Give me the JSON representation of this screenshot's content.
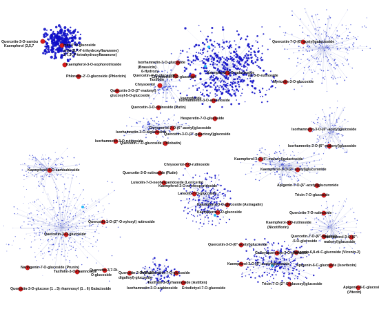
{
  "colors": {
    "background": "#ffffff",
    "edge": "#9fa8da",
    "node": "#1f2fd0",
    "node_dense": "#1010c8",
    "highlight": "#d81b1b",
    "highlight_stroke": "#8b0000",
    "accent": "#29b6f6",
    "label": "#111111"
  },
  "labels": [
    {
      "text": "Quercetin-3-O-sambu"
    },
    {
      "text": "Kaempferol (3,5,7"
    },
    {
      "text": "min-4'-O-glucoside"
    },
    {
      "text": "onin (8,7,4'-trihydroxyflavanone)"
    },
    {
      "text": "3,7,3',4'-tetrahydroxyflavanone)"
    },
    {
      "text": "Kaempferol-3-O-sophorotrioside"
    },
    {
      "text": "Phloretin-2'-O-glucoside (Phlorizin)"
    },
    {
      "text": "Quercetin-3-O-(2''-malonyl)"
    },
    {
      "text": "glucosyl-5-O-glucoside"
    },
    {
      "text": "Chrysoeriol"
    },
    {
      "text": "Quercetin-3-O-rutinoside (Rutin)"
    },
    {
      "text": "Isorhamnetin-3-O-glucoside"
    },
    {
      "text": "(Brassicin)"
    },
    {
      "text": "6-Hydroxy"
    },
    {
      "text": "Quercetin-4'-O-glucoside"
    },
    {
      "text": "Taxifolin"
    },
    {
      "text": "Quercetin-7-O-(6''-acetyl)galactoside"
    },
    {
      "text": "Myricetin-3-O-glucoside"
    },
    {
      "text": "Chrysoeriol-7-O-glucoside"
    },
    {
      "text": "Kaempferol-3-O-galactoside"
    },
    {
      "text": "nn-3-O-rutinoside"
    },
    {
      "text": "Isorhamnetin-3-O-arabinoside"
    },
    {
      "text": "kaempferide"
    },
    {
      "text": "Hesperetin-7-O-glucoside"
    },
    {
      "text": "Isorhamnetin-3-O-diglucoside"
    },
    {
      "text": "Chrysoeriol-7-O-(6''-acetyl)glucoside"
    },
    {
      "text": "Isorhamnetin-3-O-rutinoside"
    },
    {
      "text": "Quercetin-7-O-glucoside (Trilobatin)"
    },
    {
      "text": "Isorhamnetin-3-O-(6''-acetyl)glucoside"
    },
    {
      "text": "Isorhamnetin-3-O-(6''-malonyl)glucoside"
    },
    {
      "text": "Kaempferol-3-O-(6''-malonyl)galactoside"
    },
    {
      "text": "Kaempferol-3-O-(2''-acetyl)glucuronide"
    },
    {
      "text": "Quercetin-3-O-(2''-galactosyl)glucoside"
    },
    {
      "text": "Kaempferol-3-O-sambubioside"
    },
    {
      "text": "Chrysoeriol-7-O-rutinoside"
    },
    {
      "text": "Quercetin-3-O-rutinoside (Rutin)"
    },
    {
      "text": "Luteolin-7-O-neohesperidoside (Lonicerin)"
    },
    {
      "text": "Kaempferol-3-O-neohesperidoside"
    },
    {
      "text": "Luteolin-7-O-glucoside"
    },
    {
      "text": "Apigenin-7-O-(6''-acetyl)glucuronide"
    },
    {
      "text": "Tricin-7-O-glucoside"
    },
    {
      "text": "Kaempferol-3-O-glucoside (Astragalin)"
    },
    {
      "text": "Quercetin-7-O-rutinoside"
    },
    {
      "text": "Kaempferol-3-O-rutinoside"
    },
    {
      "text": "(Nicotiflorin)"
    },
    {
      "text": "Kaempferol-7-O-glucoside"
    },
    {
      "text": "Quercetin-3-O-(2''-O-xylosyl) rutinoside"
    },
    {
      "text": "Quercetin-7-O-(6''-malonyl)"
    },
    {
      "text": "-5-O-glucoside"
    },
    {
      "text": "Kaempferol-3-O-(6''-"
    },
    {
      "text": "malonyl)glucoside"
    },
    {
      "text": "Quercetin-3-O-(6''-acetyl)glucoside"
    },
    {
      "text": "Apigenin-6,8-di-C-glucoside (Vicenin-2)"
    },
    {
      "text": "Quercetin-3-O-glucoside"
    },
    {
      "text": "Galloylquercetin-3-O-glucoside"
    },
    {
      "text": "Apigenin-6-C-glucoside (Isovitexin)"
    },
    {
      "text": "Kaempferol-3-O-(6''-acetyl)glucoside"
    },
    {
      "text": "Naringenin-7-O-glucoside (Prunin)"
    },
    {
      "text": "Taxifolin-3-O-rhamnoside"
    },
    {
      "text": "Quercetin-3,7-Di-"
    },
    {
      "text": "O-glucoside"
    },
    {
      "text": "Quercetin-3-O-(2'',3''-"
    },
    {
      "text": "digalloyl)-glucoside"
    },
    {
      "text": "Aromadendrin-7-O-glucoside"
    },
    {
      "text": "Tricin-7-O-(2''-O-glucosyl)glucoside"
    },
    {
      "text": "Apigenin-8-C-glucoside"
    },
    {
      "text": "(Vitexin)"
    },
    {
      "text": "Taxifolin-3-O-rhamnoside (Astilbin)"
    },
    {
      "text": "Quercetin-3-O-glucose (1→3) rhamnosyl (1→6) Galactoside"
    },
    {
      "text": "Isorhamnetin-3-O-arabinoside"
    },
    {
      "text": "Eriodictyol-7-O-glucoside"
    }
  ]
}
